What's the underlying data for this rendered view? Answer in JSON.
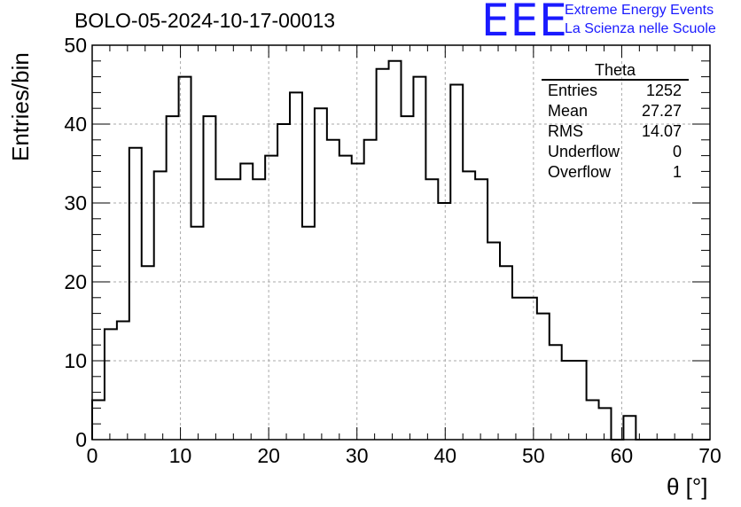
{
  "title": "BOLO-05-2024-10-17-00013",
  "logo": {
    "mark": "EEE",
    "line1": "Extreme Energy Events",
    "line2": "La Scienza nelle Scuole",
    "color": "#1a1aff"
  },
  "stats": {
    "title": "Theta",
    "rows": [
      {
        "label": "Entries",
        "value": "1252"
      },
      {
        "label": "Mean",
        "value": "27.27"
      },
      {
        "label": "RMS",
        "value": "14.07"
      },
      {
        "label": "Underflow",
        "value": "0"
      },
      {
        "label": "Overflow",
        "value": "1"
      }
    ]
  },
  "chart_data": {
    "type": "bar",
    "style": "step-histogram",
    "title": "BOLO-05-2024-10-17-00013",
    "xlabel": "θ [°]",
    "ylabel": "Entries/bin",
    "xlim": [
      0,
      70
    ],
    "ylim": [
      0,
      50
    ],
    "bin_width": 1.4,
    "x_ticks": [
      "0",
      "10",
      "20",
      "30",
      "40",
      "50",
      "60",
      "70"
    ],
    "y_ticks": [
      "0",
      "10",
      "20",
      "30",
      "40",
      "50"
    ],
    "grid": true,
    "legend": "none",
    "values": [
      5,
      14,
      15,
      37,
      22,
      34,
      41,
      46,
      27,
      41,
      33,
      33,
      35,
      33,
      36,
      40,
      44,
      27,
      42,
      38,
      36,
      35,
      38,
      47,
      48,
      41,
      46,
      33,
      30,
      45,
      34,
      33,
      25,
      22,
      18,
      18,
      16,
      12,
      10,
      10,
      5,
      4,
      0,
      3,
      0,
      0,
      0,
      0,
      0,
      0
    ]
  }
}
